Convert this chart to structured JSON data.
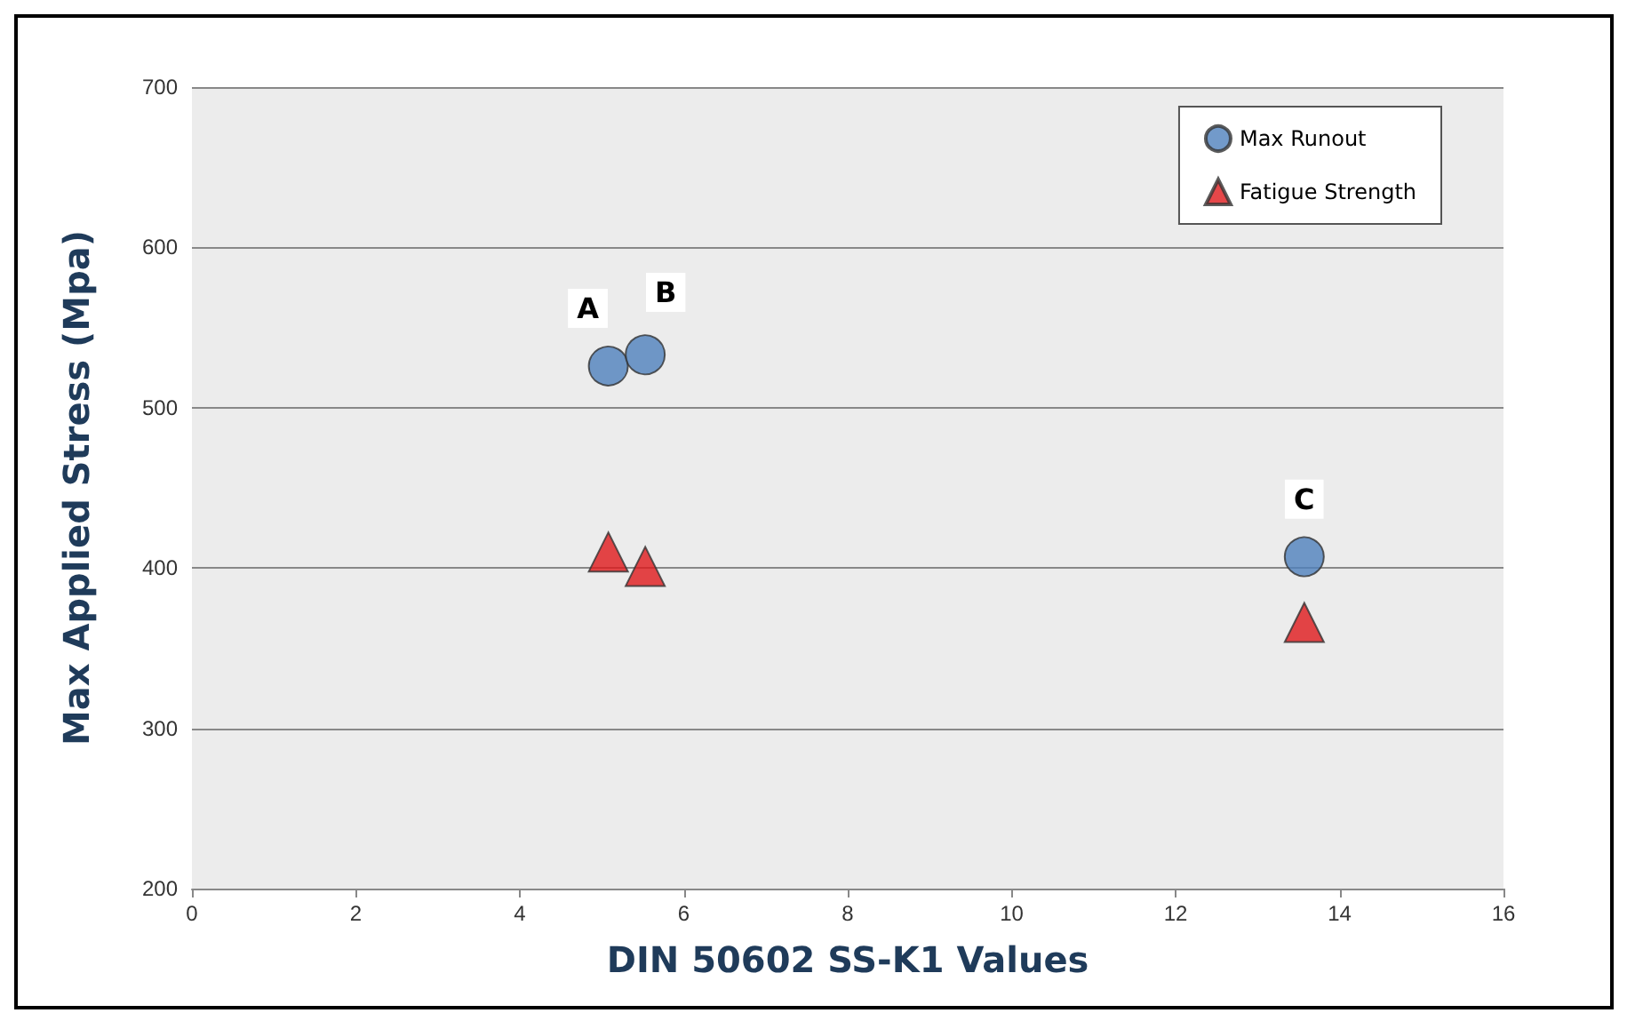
{
  "chart_data": {
    "type": "scatter",
    "xlabel": "DIN 50602 SS-K1 Values",
    "ylabel": "Max Applied Stress (Mpa)",
    "series": [
      {
        "name": "Max Runout",
        "color": "#4f81bd",
        "marker": "circle",
        "x": [
          5.08,
          5.53,
          13.57
        ],
        "values": [
          526,
          533,
          407
        ]
      },
      {
        "name": "Fatigue Strength",
        "color": "#e0191b",
        "marker": "triangle",
        "x": [
          5.08,
          5.53,
          13.57
        ],
        "values": [
          410,
          401,
          366
        ]
      }
    ],
    "annotations": [
      {
        "text": "A",
        "x": 4.83,
        "y": 562
      },
      {
        "text": "B",
        "x": 5.78,
        "y": 572
      },
      {
        "text": "C",
        "x": 13.57,
        "y": 443
      }
    ],
    "xlim": [
      0,
      16
    ],
    "xticks": [
      0,
      2,
      4,
      6,
      8,
      10,
      12,
      14,
      16
    ],
    "ylim": [
      200,
      700
    ],
    "yticks": [
      200,
      300,
      400,
      500,
      600,
      700
    ],
    "grid": "y",
    "legend": "top right"
  }
}
